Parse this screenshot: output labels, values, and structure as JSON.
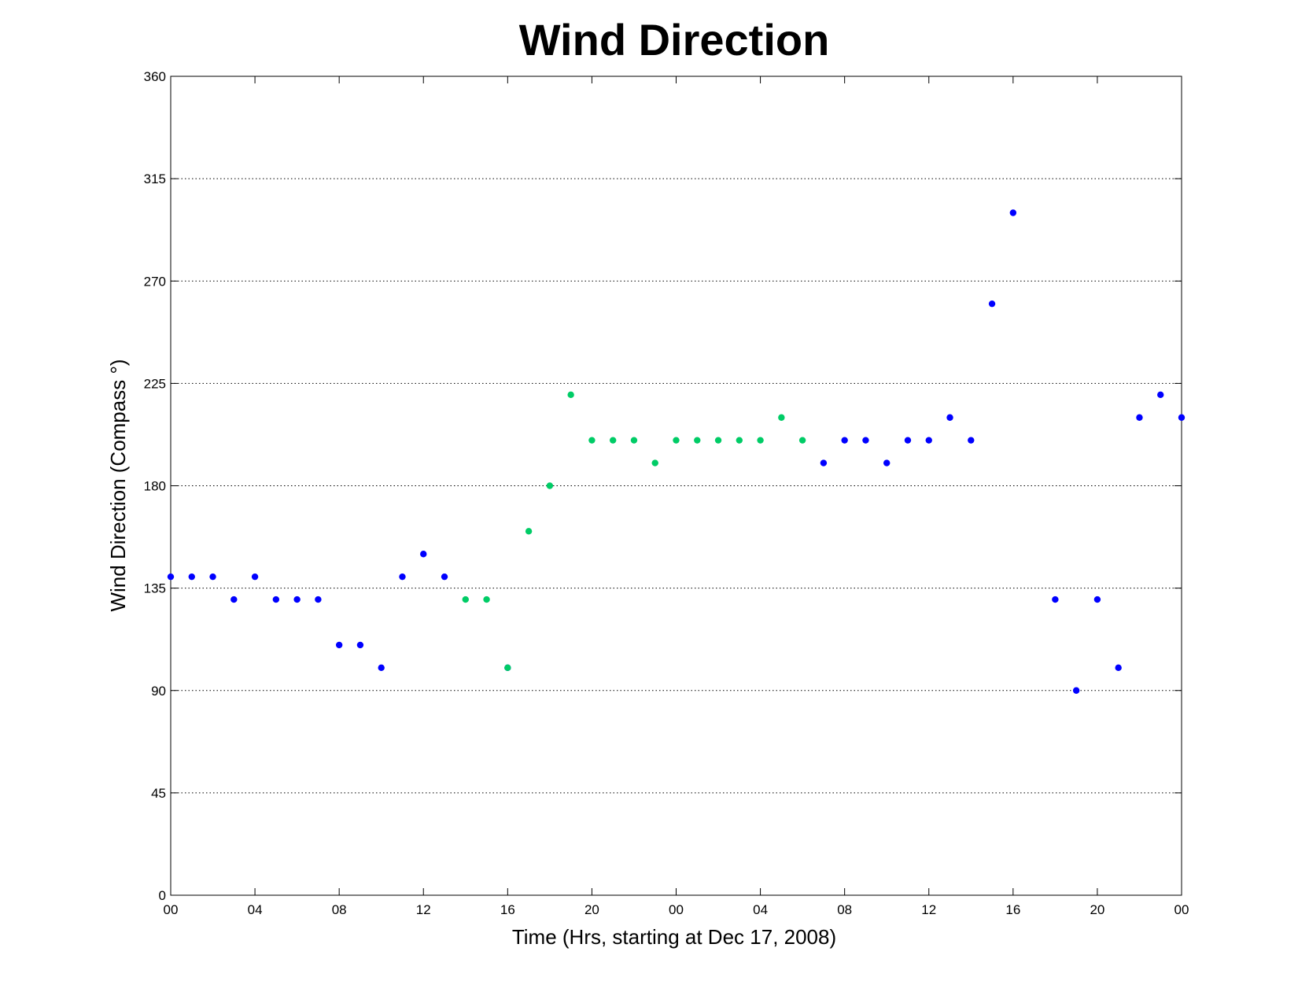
{
  "chart_data": {
    "type": "scatter",
    "title": "Wind Direction",
    "xlabel": "Time (Hrs, starting at Dec 17, 2008)",
    "ylabel": "Wind Direction (Compass °)",
    "xlim": [
      0,
      48
    ],
    "ylim": [
      0,
      360
    ],
    "grid": "y-dotted",
    "x_ticks": [
      0,
      4,
      8,
      12,
      16,
      20,
      24,
      28,
      32,
      36,
      40,
      44,
      48
    ],
    "x_tick_labels": [
      "00",
      "04",
      "08",
      "12",
      "16",
      "20",
      "00",
      "04",
      "08",
      "12",
      "16",
      "20",
      "00"
    ],
    "y_ticks": [
      0,
      45,
      90,
      135,
      180,
      225,
      270,
      315,
      360
    ],
    "y_tick_labels": [
      "0",
      "45",
      "90",
      "135",
      "180",
      "225",
      "270",
      "315",
      "360"
    ],
    "series": [
      {
        "color": "#0000ff",
        "x": [
          0,
          1,
          2,
          3,
          4,
          5,
          6,
          7,
          8,
          9,
          10,
          11,
          12,
          13,
          16,
          31,
          32,
          33,
          34,
          35,
          36,
          37,
          38,
          39,
          40,
          42,
          43,
          44,
          45,
          46,
          47,
          48
        ],
        "y": [
          140,
          140,
          140,
          130,
          140,
          130,
          130,
          130,
          110,
          110,
          100,
          140,
          150,
          140,
          100,
          190,
          200,
          200,
          190,
          200,
          200,
          210,
          200,
          260,
          300,
          130,
          90,
          130,
          100,
          210,
          220,
          210
        ]
      },
      {
        "color": "#00cc66",
        "x": [
          14,
          15,
          16,
          17,
          18,
          19,
          20,
          21,
          22,
          23,
          24,
          25,
          26,
          27,
          28,
          29,
          30
        ],
        "y": [
          130,
          130,
          100,
          160,
          180,
          220,
          200,
          200,
          200,
          190,
          200,
          200,
          200,
          200,
          200,
          210,
          200
        ]
      }
    ]
  }
}
